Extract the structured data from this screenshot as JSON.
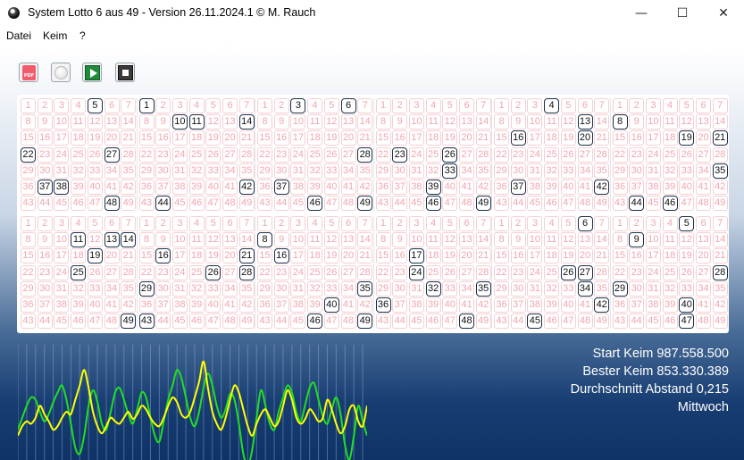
{
  "window": {
    "title": "System Lotto 6 aus 49 - Version 26.11.2024.1 © M. Rauch",
    "minimize_glyph": "—",
    "maximize_glyph": "☐",
    "close_glyph": "✕"
  },
  "menu": [
    "Datei",
    "Keim",
    "?"
  ],
  "toolbar": {
    "pdf_icon": "pdf-icon",
    "pdf_text": "PDF",
    "record_icon": "record-icon",
    "play_icon": "play-icon",
    "stop_icon": "stop-icon"
  },
  "numbers": [
    "1",
    "2",
    "3",
    "4",
    "5",
    "6",
    "7",
    "8",
    "9",
    "10",
    "11",
    "12",
    "13",
    "14",
    "15",
    "16",
    "17",
    "18",
    "19",
    "20",
    "21",
    "22",
    "23",
    "24",
    "25",
    "26",
    "27",
    "28",
    "29",
    "30",
    "31",
    "32",
    "33",
    "34",
    "35",
    "36",
    "37",
    "38",
    "39",
    "40",
    "41",
    "42",
    "43",
    "44",
    "45",
    "46",
    "47",
    "48",
    "49"
  ],
  "tickets": [
    [
      5,
      22,
      27,
      37,
      38,
      48
    ],
    [
      1,
      10,
      11,
      14,
      42,
      44
    ],
    [
      3,
      6,
      28,
      37,
      46,
      49
    ],
    [
      23,
      26,
      33,
      39,
      46,
      49
    ],
    [
      4,
      13,
      16,
      20,
      37,
      42
    ],
    [
      8,
      19,
      21,
      35,
      44,
      46
    ],
    [
      11,
      13,
      14,
      19,
      25,
      49
    ],
    [
      16,
      21,
      26,
      28,
      29,
      43
    ],
    [
      8,
      16,
      35,
      40,
      46,
      49
    ],
    [
      17,
      24,
      32,
      35,
      36,
      48
    ],
    [
      6,
      26,
      27,
      34,
      42,
      45
    ],
    [
      5,
      9,
      28,
      29,
      40,
      47
    ]
  ],
  "stats": {
    "start_seed": "Start Keim 987.558.500",
    "best_seed": "Bester Keim 853.330.389",
    "avg_distance": "Durchschnitt Abstand 0,215",
    "weekday": "Mittwoch"
  },
  "chart_data": {
    "type": "line",
    "x": [
      0,
      1,
      2,
      3,
      4,
      5,
      6,
      7,
      8,
      9,
      10,
      11,
      12,
      13,
      14,
      15,
      16,
      17,
      18,
      19,
      20,
      21,
      22,
      23,
      24,
      25,
      26,
      27,
      28,
      29,
      30,
      31,
      32,
      33,
      34,
      35,
      36,
      37,
      38,
      39,
      40,
      41,
      42,
      43,
      44,
      45,
      46,
      47,
      48,
      49,
      50,
      51,
      52,
      53,
      54,
      55,
      56,
      57,
      58,
      59,
      60,
      61,
      62,
      63,
      64,
      65,
      66,
      67,
      68,
      69,
      70,
      71,
      72,
      73,
      74,
      75,
      76,
      77,
      78,
      79
    ],
    "series": [
      {
        "color": "#22dd22",
        "values": [
          0.35,
          0.45,
          0.55,
          0.62,
          0.6,
          0.5,
          0.42,
          0.48,
          0.58,
          0.66,
          0.72,
          0.6,
          0.4,
          0.2,
          0.15,
          0.3,
          0.55,
          0.68,
          0.58,
          0.4,
          0.35,
          0.5,
          0.66,
          0.7,
          0.6,
          0.48,
          0.4,
          0.52,
          0.66,
          0.62,
          0.45,
          0.3,
          0.25,
          0.42,
          0.6,
          0.72,
          0.85,
          0.78,
          0.62,
          0.45,
          0.38,
          0.5,
          0.7,
          0.82,
          0.72,
          0.55,
          0.45,
          0.52,
          0.65,
          0.6,
          0.4,
          0.15,
          0.05,
          0.18,
          0.45,
          0.68,
          0.55,
          0.4,
          0.35,
          0.5,
          0.62,
          0.72,
          0.66,
          0.5,
          0.42,
          0.56,
          0.7,
          0.74,
          0.6,
          0.46,
          0.4,
          0.52,
          0.62,
          0.48,
          0.22,
          0.1,
          0.3,
          0.55,
          0.42,
          0.3
        ]
      },
      {
        "color": "#ffff00",
        "values": [
          0.3,
          0.38,
          0.42,
          0.4,
          0.45,
          0.55,
          0.48,
          0.42,
          0.35,
          0.38,
          0.45,
          0.5,
          0.48,
          0.6,
          0.72,
          0.85,
          0.7,
          0.5,
          0.38,
          0.32,
          0.38,
          0.45,
          0.42,
          0.4,
          0.45,
          0.5,
          0.44,
          0.48,
          0.55,
          0.52,
          0.45,
          0.4,
          0.38,
          0.45,
          0.55,
          0.62,
          0.58,
          0.48,
          0.45,
          0.5,
          0.62,
          0.75,
          0.92,
          0.7,
          0.5,
          0.4,
          0.35,
          0.45,
          0.6,
          0.72,
          0.66,
          0.52,
          0.38,
          0.3,
          0.4,
          0.48,
          0.52,
          0.45,
          0.38,
          0.42,
          0.55,
          0.68,
          0.6,
          0.45,
          0.4,
          0.44,
          0.52,
          0.48,
          0.42,
          0.45,
          0.6,
          0.52,
          0.4,
          0.32,
          0.38,
          0.52,
          0.55,
          0.42,
          0.38,
          0.55
        ]
      }
    ],
    "ylim": [
      0,
      1
    ],
    "grid": true
  }
}
